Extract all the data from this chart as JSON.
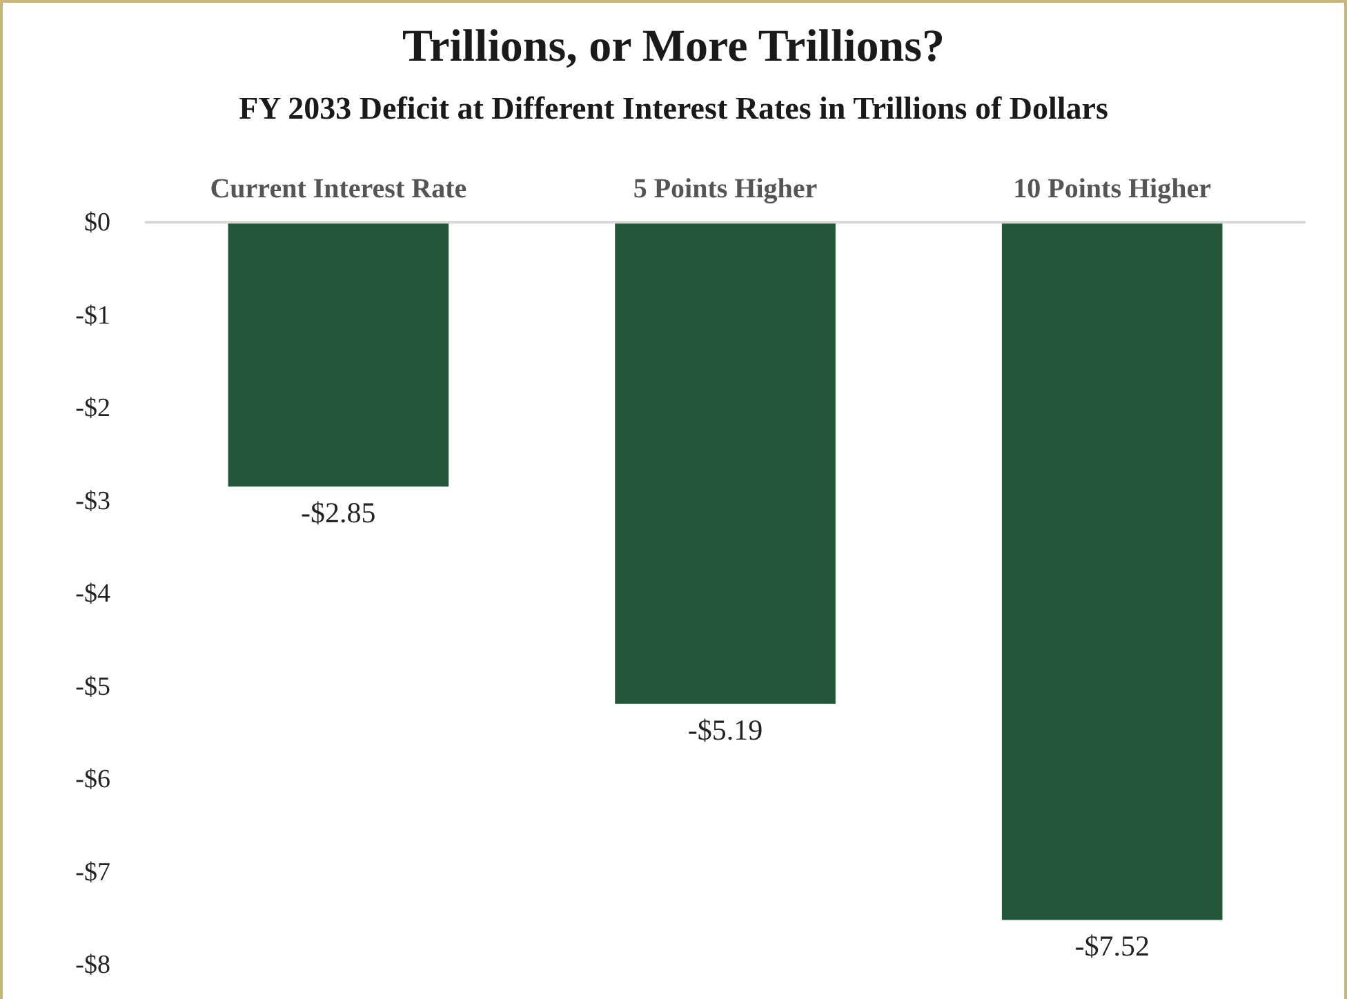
{
  "chart_data": {
    "type": "bar",
    "title": "Trillions, or More Trillions?",
    "subtitle": "FY 2033 Deficit at Different Interest Rates in Trillions of Dollars",
    "categories": [
      "Current Interest Rate",
      "5 Points Higher",
      "10 Points Higher"
    ],
    "values": [
      -2.85,
      -5.19,
      -7.52
    ],
    "color": "#24573a",
    "value_labels": [
      "-$2.85",
      "-$5.19",
      "-$7.52"
    ],
    "ylim": [
      -8,
      0
    ],
    "yticks": [
      {
        "value": 0,
        "label": "$0"
      },
      {
        "value": -1,
        "label": "-$1"
      },
      {
        "value": -2,
        "label": "-$2"
      },
      {
        "value": -3,
        "label": "-$3"
      },
      {
        "value": -4,
        "label": "-$4"
      },
      {
        "value": -5,
        "label": "-$5"
      },
      {
        "value": -6,
        "label": "-$6"
      },
      {
        "value": -7,
        "label": "-$7"
      },
      {
        "value": -8,
        "label": "-$8"
      }
    ],
    "grid": false
  }
}
